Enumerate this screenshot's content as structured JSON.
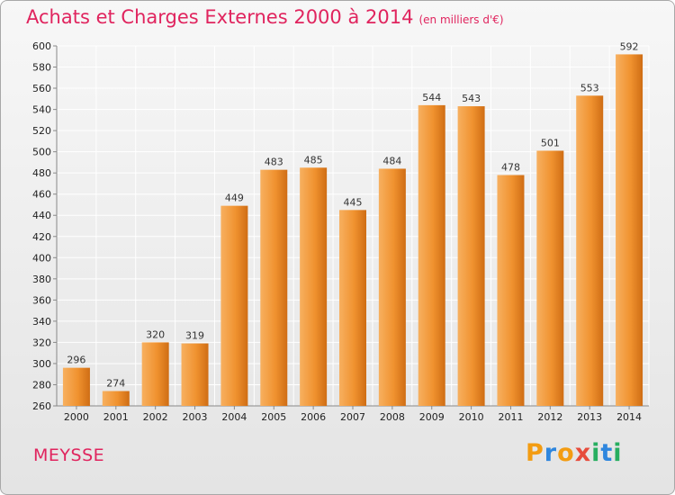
{
  "title": "Achats et Charges Externes 2000 à 2014",
  "unit_note": "(en milliers d'€)",
  "commune": "MEYSSE",
  "brand": {
    "text": "Proxiti",
    "letters": [
      "P",
      "r",
      "o",
      "x",
      "i",
      "t",
      "i"
    ],
    "colors": [
      "#f39c12",
      "#2e86de",
      "#f39c12",
      "#e74c3c",
      "#27ae60",
      "#2e86de",
      "#27ae60"
    ]
  },
  "colors": {
    "bar": "#f0922f",
    "bar_light": "#f7b060",
    "bar_dark": "#cf6d14",
    "title": "#e0245e",
    "grid": "#ffffff"
  },
  "chart_data": {
    "type": "bar",
    "categories": [
      "2000",
      "2001",
      "2002",
      "2003",
      "2004",
      "2005",
      "2006",
      "2007",
      "2008",
      "2009",
      "2010",
      "2011",
      "2012",
      "2013",
      "2014"
    ],
    "values": [
      296,
      274,
      320,
      319,
      449,
      483,
      485,
      445,
      484,
      544,
      543,
      478,
      501,
      553,
      592
    ],
    "ylim": [
      260,
      600
    ],
    "yticks": [
      260,
      280,
      300,
      320,
      340,
      360,
      380,
      400,
      420,
      440,
      460,
      480,
      500,
      520,
      540,
      560,
      580,
      600
    ],
    "grid": true
  }
}
